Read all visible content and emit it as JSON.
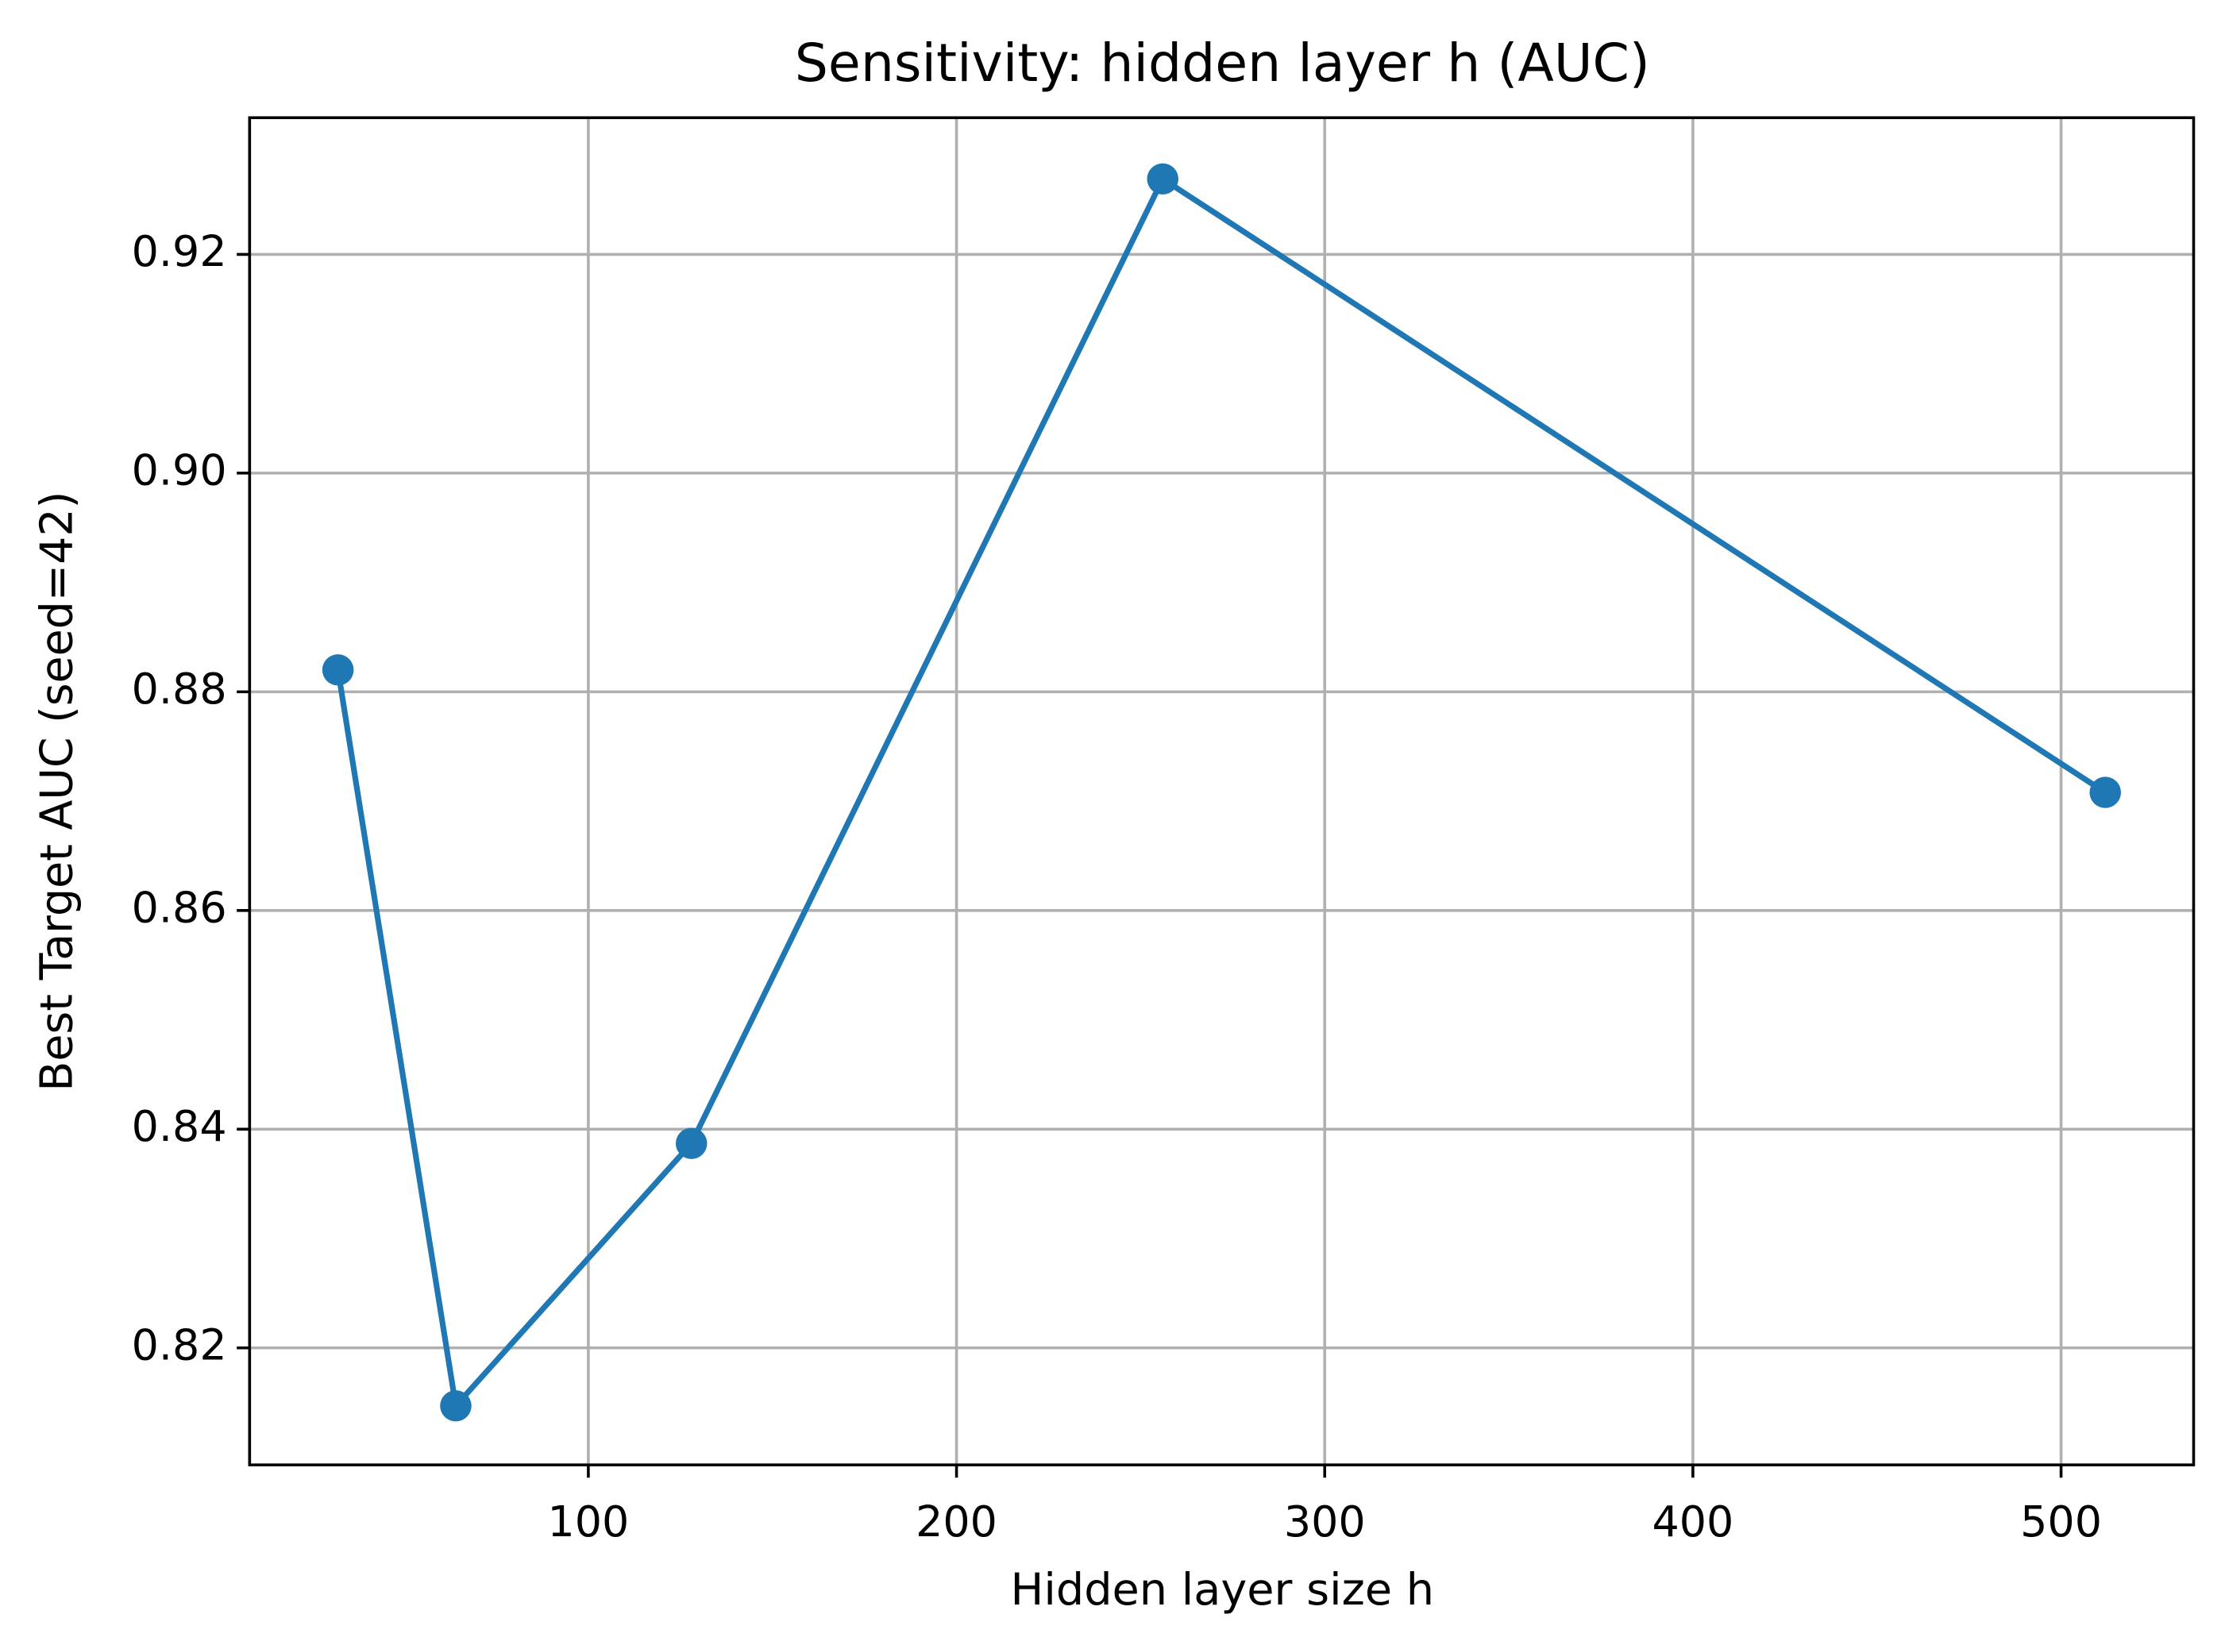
{
  "chart_data": {
    "type": "line",
    "title": "Sensitivity: hidden layer h (AUC)",
    "x_label": "Hidden layer size h",
    "y_label": "Best Target AUC (seed=42)",
    "x": [
      32,
      64,
      128,
      256,
      512
    ],
    "series": [
      {
        "color": "#1f77b4",
        "values": [
          0.882,
          0.8147,
          0.8387,
          0.9269,
          0.8708
        ]
      }
    ],
    "xlim": [
      8,
      536
    ],
    "xticks": [
      100,
      200,
      300,
      400,
      500
    ],
    "ylim": [
      0.8093,
      0.9325
    ],
    "yticks": [
      0.82,
      0.84,
      0.86,
      0.88,
      {
        "value": 0.9,
        "label": "0.90"
      },
      0.92
    ],
    "grid": true,
    "markers": true
  }
}
